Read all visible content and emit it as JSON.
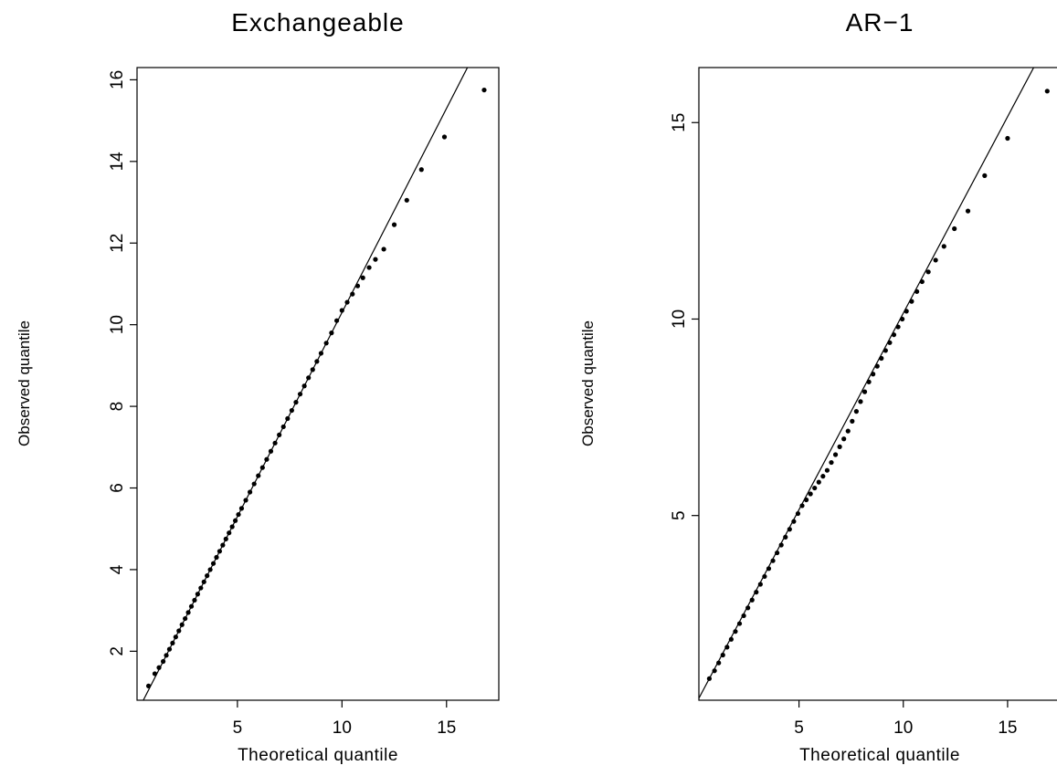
{
  "chart_data": [
    {
      "type": "scatter",
      "title": "Exchangeable",
      "xlabel": "Theoretical quantile",
      "ylabel": "Observed quantile",
      "xlim": [
        0.2,
        17.5
      ],
      "ylim": [
        0.8,
        16.3
      ],
      "xticks": [
        5,
        10,
        15
      ],
      "yticks": [
        2,
        4,
        6,
        8,
        10,
        12,
        14,
        16
      ],
      "reference_line": {
        "slope": 1,
        "intercept": 0.3
      },
      "series": [
        {
          "x": [
            0.75,
            1.05,
            1.25,
            1.45,
            1.6,
            1.75,
            1.9,
            2.05,
            2.2,
            2.35,
            2.5,
            2.65,
            2.8,
            2.95,
            3.1,
            3.25,
            3.4,
            3.55,
            3.7,
            3.85,
            4.0,
            4.15,
            4.3,
            4.45,
            4.6,
            4.75,
            4.9,
            5.05,
            5.2,
            5.4,
            5.6,
            5.8,
            6.0,
            6.2,
            6.4,
            6.6,
            6.8,
            7.0,
            7.2,
            7.4,
            7.6,
            7.8,
            8.0,
            8.2,
            8.4,
            8.6,
            8.8,
            9.0,
            9.25,
            9.5,
            9.75,
            10.0,
            10.25,
            10.5,
            10.75,
            11.0,
            11.3,
            11.6,
            12.0,
            12.5,
            13.1,
            13.8,
            14.9,
            16.8
          ],
          "y": [
            1.15,
            1.45,
            1.6,
            1.75,
            1.9,
            2.05,
            2.2,
            2.35,
            2.5,
            2.65,
            2.8,
            2.95,
            3.1,
            3.25,
            3.4,
            3.55,
            3.7,
            3.85,
            4.0,
            4.15,
            4.3,
            4.45,
            4.6,
            4.75,
            4.9,
            5.05,
            5.2,
            5.35,
            5.5,
            5.7,
            5.9,
            6.1,
            6.3,
            6.5,
            6.7,
            6.9,
            7.1,
            7.3,
            7.5,
            7.7,
            7.9,
            8.1,
            8.3,
            8.5,
            8.7,
            8.9,
            9.1,
            9.3,
            9.55,
            9.8,
            10.1,
            10.35,
            10.55,
            10.75,
            10.95,
            11.15,
            11.4,
            11.6,
            11.85,
            12.45,
            13.05,
            13.8,
            14.6,
            15.75
          ]
        }
      ]
    },
    {
      "type": "scatter",
      "title": "AR−1",
      "xlabel": "Theoretical quantile",
      "ylabel": "Observed quantile",
      "xlim": [
        0.2,
        17.5
      ],
      "ylim": [
        0.3,
        16.4
      ],
      "xticks": [
        5,
        10,
        15
      ],
      "yticks": [
        5,
        10,
        15
      ],
      "reference_line": {
        "slope": 1,
        "intercept": 0.15
      },
      "series": [
        {
          "x": [
            0.7,
            0.95,
            1.15,
            1.35,
            1.55,
            1.75,
            1.95,
            2.15,
            2.35,
            2.55,
            2.75,
            2.95,
            3.15,
            3.35,
            3.55,
            3.75,
            3.95,
            4.15,
            4.35,
            4.55,
            4.75,
            4.95,
            5.15,
            5.35,
            5.55,
            5.75,
            5.95,
            6.15,
            6.35,
            6.55,
            6.75,
            6.95,
            7.15,
            7.35,
            7.55,
            7.75,
            7.95,
            8.15,
            8.35,
            8.55,
            8.75,
            8.95,
            9.15,
            9.35,
            9.55,
            9.75,
            9.95,
            10.15,
            10.4,
            10.65,
            10.9,
            11.2,
            11.55,
            11.95,
            12.45,
            13.1,
            13.9,
            15.0,
            16.9
          ],
          "y": [
            0.85,
            1.05,
            1.25,
            1.45,
            1.65,
            1.85,
            2.05,
            2.25,
            2.45,
            2.65,
            2.85,
            3.05,
            3.25,
            3.45,
            3.65,
            3.85,
            4.05,
            4.25,
            4.45,
            4.65,
            4.85,
            5.05,
            5.25,
            5.4,
            5.55,
            5.7,
            5.85,
            6.0,
            6.15,
            6.35,
            6.55,
            6.75,
            6.95,
            7.15,
            7.4,
            7.65,
            7.9,
            8.15,
            8.4,
            8.6,
            8.8,
            9.0,
            9.2,
            9.4,
            9.6,
            9.8,
            10.0,
            10.2,
            10.45,
            10.7,
            10.95,
            11.2,
            11.5,
            11.85,
            12.3,
            12.75,
            13.65,
            14.6,
            15.8
          ]
        }
      ]
    }
  ]
}
